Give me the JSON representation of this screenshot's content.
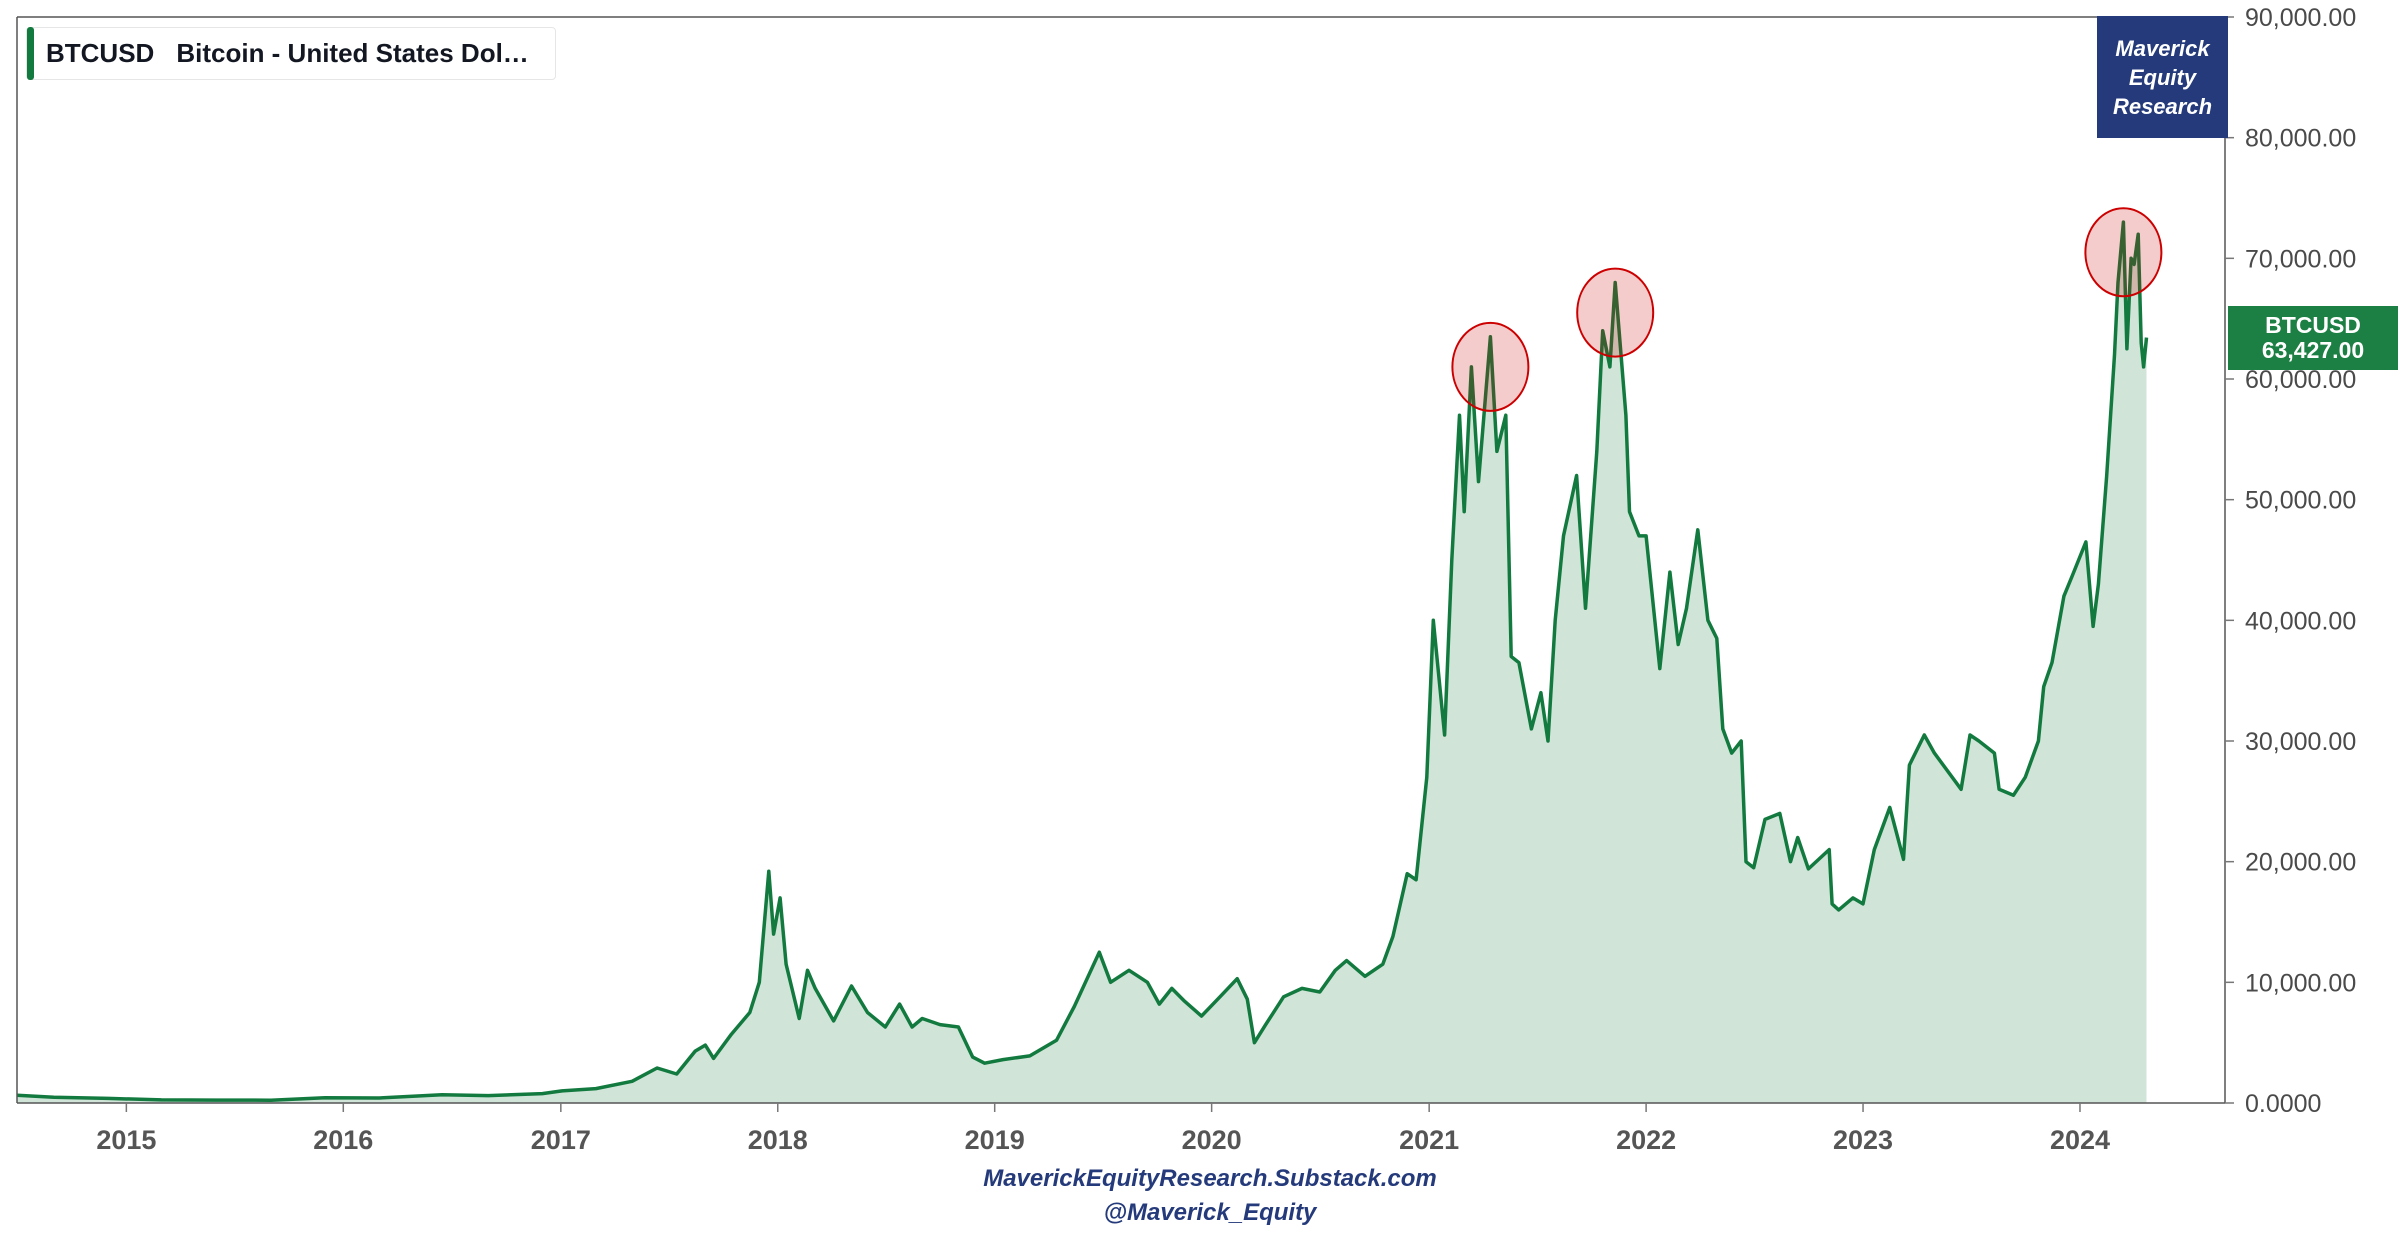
{
  "legend": {
    "symbol": "BTCUSD",
    "name": "Bitcoin - United States Dol…",
    "color": "#137a3f"
  },
  "branding": {
    "line1": "Maverick",
    "line2": "Equity",
    "line3": "Research",
    "color": "#243a7a"
  },
  "price_tag": {
    "symbol": "BTCUSD",
    "value": "63,427.00",
    "color": "#1c7f43"
  },
  "footer": {
    "site": "MaverickEquityResearch.Substack.com",
    "handle": "@Maverick_Equity"
  },
  "chart_data": {
    "type": "area",
    "title": "",
    "xlabel": "",
    "ylabel": "",
    "y_axis_position": "right",
    "ylim": [
      0,
      90000
    ],
    "y_ticks": [
      "0.0000",
      "10,000.00",
      "20,000.00",
      "30,000.00",
      "40,000.00",
      "50,000.00",
      "60,000.00",
      "70,000.00",
      "80,000.00",
      "90,000.00"
    ],
    "x_ticks": [
      "2015",
      "2016",
      "2017",
      "2018",
      "2019",
      "2020",
      "2021",
      "2022",
      "2023",
      "2024"
    ],
    "x_range": [
      "2014-07-01",
      "2024-09-01"
    ],
    "grid": false,
    "line_color": "#137a3f",
    "fill_color": "#d0e5d8",
    "highlight_color": "#cc0000",
    "series": [
      {
        "x": [
          "2014-07-01",
          "2014-09-01",
          "2014-12-01",
          "2015-03-01",
          "2015-06-01",
          "2015-09-01",
          "2015-12-01",
          "2016-03-01",
          "2016-06-15",
          "2016-09-01",
          "2016-12-01",
          "2017-01-03",
          "2017-03-01",
          "2017-05-01",
          "2017-06-12",
          "2017-07-15",
          "2017-08-15",
          "2017-09-01",
          "2017-09-15",
          "2017-10-15",
          "2017-11-15",
          "2017-12-01",
          "2017-12-17",
          "2017-12-25",
          "2018-01-05",
          "2018-01-15",
          "2018-02-06",
          "2018-02-20",
          "2018-03-05",
          "2018-04-05",
          "2018-05-05",
          "2018-06-01",
          "2018-07-01",
          "2018-07-25",
          "2018-08-15",
          "2018-09-01",
          "2018-10-01",
          "2018-11-01",
          "2018-11-25",
          "2018-12-15",
          "2019-01-15",
          "2019-03-01",
          "2019-04-15",
          "2019-05-15",
          "2019-06-26",
          "2019-07-15",
          "2019-08-15",
          "2019-09-15",
          "2019-10-05",
          "2019-10-26",
          "2019-11-15",
          "2019-12-15",
          "2020-01-15",
          "2020-02-13",
          "2020-03-01",
          "2020-03-13",
          "2020-04-01",
          "2020-05-01",
          "2020-06-01",
          "2020-07-01",
          "2020-07-27",
          "2020-08-15",
          "2020-09-15",
          "2020-10-15",
          "2020-11-01",
          "2020-11-25",
          "2020-12-10",
          "2020-12-28",
          "2021-01-08",
          "2021-01-27",
          "2021-02-08",
          "2021-02-21",
          "2021-03-01",
          "2021-03-13",
          "2021-03-25",
          "2021-04-14",
          "2021-04-25",
          "2021-05-10",
          "2021-05-19",
          "2021-06-01",
          "2021-06-22",
          "2021-07-08",
          "2021-07-20",
          "2021-08-01",
          "2021-08-15",
          "2021-09-06",
          "2021-09-21",
          "2021-10-10",
          "2021-10-20",
          "2021-11-01",
          "2021-11-10",
          "2021-11-28",
          "2021-12-04",
          "2021-12-20",
          "2022-01-01",
          "2022-01-24",
          "2022-02-10",
          "2022-02-24",
          "2022-03-10",
          "2022-03-29",
          "2022-04-15",
          "2022-04-30",
          "2022-05-10",
          "2022-05-25",
          "2022-06-10",
          "2022-06-18",
          "2022-07-01",
          "2022-07-20",
          "2022-08-14",
          "2022-09-01",
          "2022-09-13",
          "2022-10-01",
          "2022-11-05",
          "2022-11-10",
          "2022-11-21",
          "2022-12-15",
          "2023-01-01",
          "2023-01-20",
          "2023-02-15",
          "2023-03-10",
          "2023-03-20",
          "2023-04-14",
          "2023-05-01",
          "2023-06-15",
          "2023-06-30",
          "2023-07-15",
          "2023-08-10",
          "2023-08-18",
          "2023-09-11",
          "2023-10-01",
          "2023-10-23",
          "2023-11-01",
          "2023-11-15",
          "2023-12-05",
          "2023-12-20",
          "2024-01-11",
          "2024-01-23",
          "2024-02-01",
          "2024-02-15",
          "2024-02-28",
          "2024-03-05",
          "2024-03-14",
          "2024-03-20",
          "2024-03-27",
          "2024-04-01",
          "2024-04-08",
          "2024-04-13",
          "2024-04-17",
          "2024-04-22"
        ],
        "y": [
          640,
          480,
          380,
          260,
          240,
          235,
          430,
          415,
          680,
          610,
          780,
          1000,
          1190,
          1800,
          2900,
          2400,
          4300,
          4800,
          3700,
          5700,
          7500,
          10000,
          19200,
          14000,
          17000,
          11500,
          7000,
          11000,
          9500,
          6800,
          9700,
          7500,
          6300,
          8200,
          6300,
          7000,
          6500,
          6300,
          3800,
          3300,
          3600,
          3900,
          5200,
          8000,
          12500,
          10000,
          11000,
          10000,
          8200,
          9500,
          8500,
          7200,
          8800,
          10300,
          8600,
          5000,
          6500,
          8800,
          9500,
          9200,
          11000,
          11800,
          10500,
          11500,
          13800,
          19000,
          18500,
          27000,
          40000,
          30500,
          45000,
          57000,
          49000,
          61000,
          51500,
          63500,
          54000,
          57000,
          37000,
          36500,
          31000,
          34000,
          30000,
          40000,
          47000,
          52000,
          41000,
          54000,
          64000,
          61000,
          68000,
          57000,
          49000,
          47000,
          47000,
          36000,
          44000,
          38000,
          41000,
          47500,
          40000,
          38500,
          31000,
          29000,
          30000,
          20000,
          19500,
          23500,
          24000,
          20000,
          22000,
          19400,
          21000,
          16500,
          16000,
          17000,
          16500,
          21000,
          24500,
          20200,
          28000,
          30500,
          29000,
          26000,
          30500,
          30000,
          29000,
          26000,
          25500,
          27000,
          30000,
          34500,
          36500,
          42000,
          43800,
          46500,
          39500,
          43000,
          52000,
          62000,
          68000,
          73000,
          62500,
          70000,
          69500,
          72000,
          63000,
          61000,
          63427
        ]
      }
    ],
    "highlights": [
      {
        "label": "peak-2021-04",
        "x": "2021-04-14",
        "y": 61000
      },
      {
        "label": "peak-2021-11",
        "x": "2021-11-10",
        "y": 65500
      },
      {
        "label": "peak-2024-03",
        "x": "2024-03-14",
        "y": 70500
      }
    ]
  }
}
